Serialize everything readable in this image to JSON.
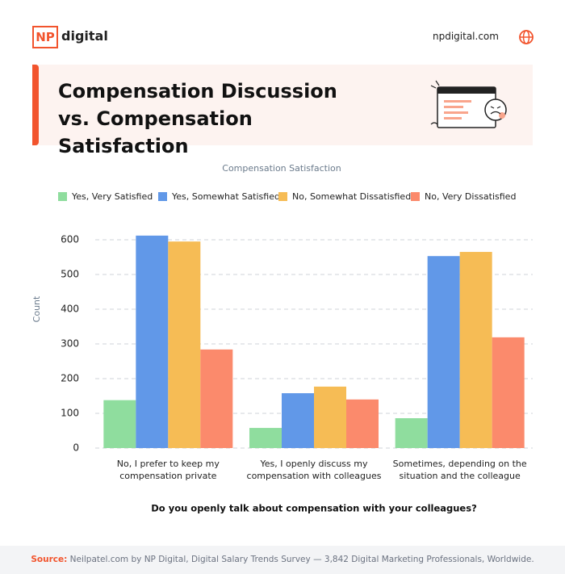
{
  "header": {
    "logo_mark": "NP",
    "logo_text": "digital",
    "website": "npdigital.com"
  },
  "title": "Compensation Discussion vs. Compensation Satisfaction",
  "chart_data": {
    "type": "bar",
    "legend_title": "Compensation Satisfaction",
    "ylabel": "Count",
    "xlabel": "Do you openly talk about compensation with your colleagues?",
    "categories": [
      "No, I prefer to keep my compensation private",
      "Yes, I openly discuss my compensation with colleagues",
      "Sometimes, depending on the situation and the colleague"
    ],
    "series": [
      {
        "name": "Yes, Very Satisfied",
        "color": "#8fdd9e",
        "values": [
          138,
          58,
          86
        ]
      },
      {
        "name": "Yes, Somewhat Satisfied",
        "color": "#6198e8",
        "values": [
          612,
          158,
          553
        ]
      },
      {
        "name": "No, Somewhat Dissatisfied",
        "color": "#f6bc55",
        "values": [
          595,
          177,
          565
        ]
      },
      {
        "name": "No, Very Dissatisfied",
        "color": "#fb8a6c",
        "values": [
          284,
          140,
          319
        ]
      }
    ],
    "ylim": [
      0,
      650
    ],
    "yticks": [
      0,
      100,
      200,
      300,
      400,
      500,
      600
    ],
    "grid": true
  },
  "footer": {
    "source_label": "Source:",
    "source_text": "Neilpatel.com by NP Digital, Digital Salary Trends Survey — 3,842 Digital Marketing Professionals, Worldwide."
  }
}
